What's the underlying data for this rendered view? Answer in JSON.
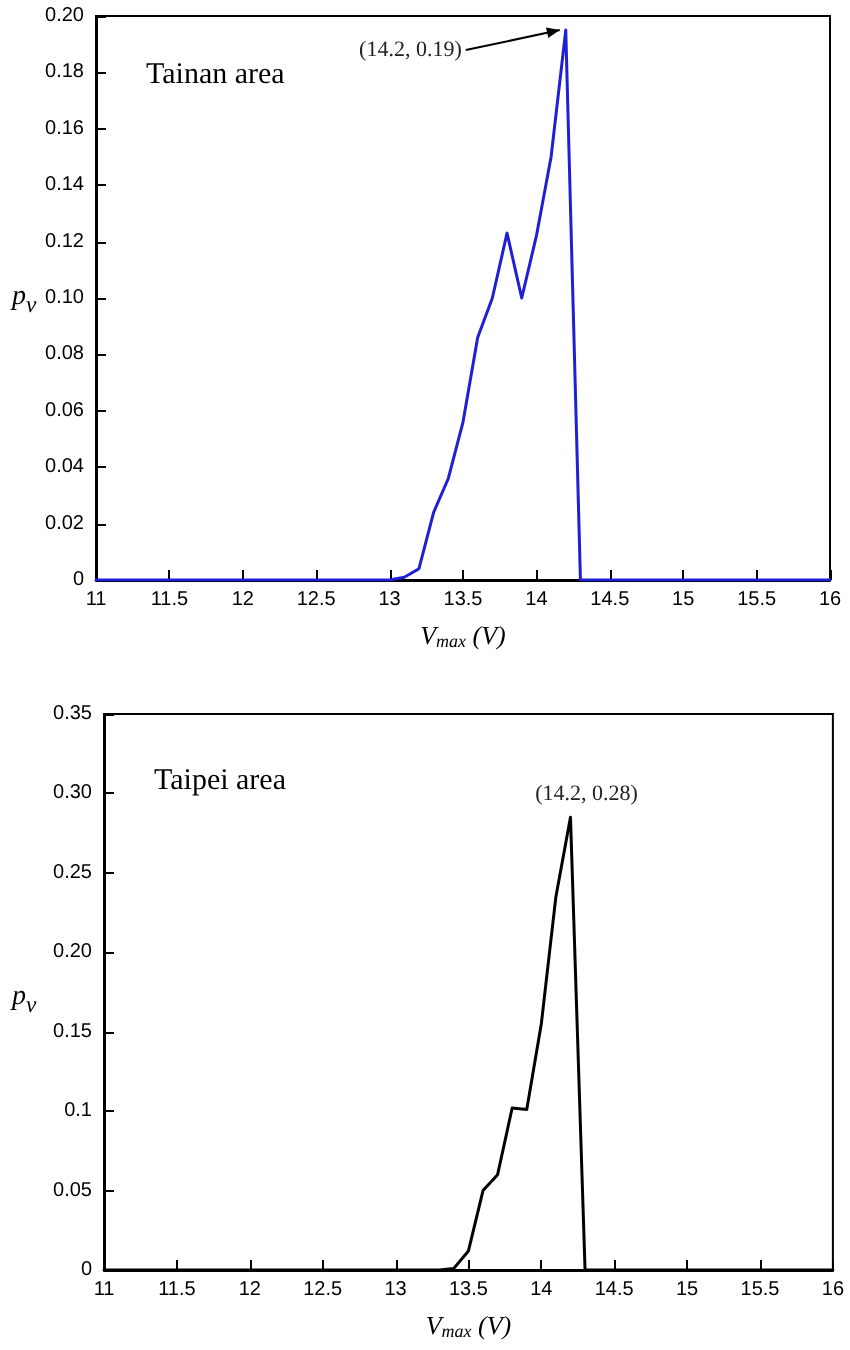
{
  "chart_data": [
    {
      "type": "line",
      "xlabel": "V$_{max}$ (V)",
      "ylabel": "p$_{v}$",
      "x": [
        11,
        13,
        13.1,
        13.2,
        13.3,
        13.4,
        13.5,
        13.6,
        13.7,
        13.8,
        13.9,
        14,
        14.1,
        14.2,
        14.3,
        16
      ],
      "series": [
        {
          "color": "#1f1fd6",
          "values": [
            0,
            0,
            0.001,
            0.004,
            0.024,
            0.036,
            0.056,
            0.086,
            0.1,
            0.123,
            0.1,
            0.122,
            0.15,
            0.195,
            0,
            0
          ]
        }
      ],
      "xlim": [
        11,
        16
      ],
      "xticks": [
        11,
        11.5,
        12,
        12.5,
        13,
        13.5,
        14,
        14.5,
        15,
        15.5,
        16
      ],
      "ylim": [
        0,
        0.2
      ],
      "yticks": [
        0,
        0.02,
        0.04,
        0.06,
        0.08,
        {
          "value": 0.1,
          "label": "0.10"
        },
        0.12,
        0.14,
        0.16,
        0.18,
        {
          "value": 0.2,
          "label": "0.20"
        }
      ],
      "marker": "none",
      "line_style": "solid",
      "annotations": [
        {
          "text": "(14.2, 0.19)",
          "x": 14.2,
          "y": 0.195
        },
        "Tainan area"
      ]
    },
    {
      "type": "line",
      "xlabel": "V$_{max}$ (V)",
      "ylabel": "p$_{v}$",
      "x": [
        11,
        13.3,
        13.4,
        13.5,
        13.6,
        13.7,
        13.8,
        13.9,
        14,
        14.1,
        14.2,
        14.3,
        16
      ],
      "series": [
        {
          "color": "#000000",
          "values": [
            0,
            0,
            0.001,
            0.012,
            0.05,
            0.06,
            0.102,
            0.101,
            0.155,
            0.235,
            0.285,
            0,
            0
          ]
        }
      ],
      "xlim": [
        11,
        16
      ],
      "xticks": [
        11,
        11.5,
        12,
        12.5,
        13,
        13.5,
        14,
        14.5,
        15,
        15.5,
        16
      ],
      "ylim": [
        0,
        0.35
      ],
      "yticks": [
        0,
        0.05,
        {
          "value": 0.1,
          "label": "0.1"
        },
        0.15,
        {
          "value": 0.2,
          "label": "0.20"
        },
        0.25,
        {
          "value": 0.3,
          "label": "0.30"
        },
        0.35
      ],
      "marker": "none",
      "line_style": "solid",
      "annotations": [
        {
          "text": "(14.2, 0.28)",
          "x": 14.2,
          "y": 0.285
        },
        "Taipei area"
      ]
    }
  ]
}
